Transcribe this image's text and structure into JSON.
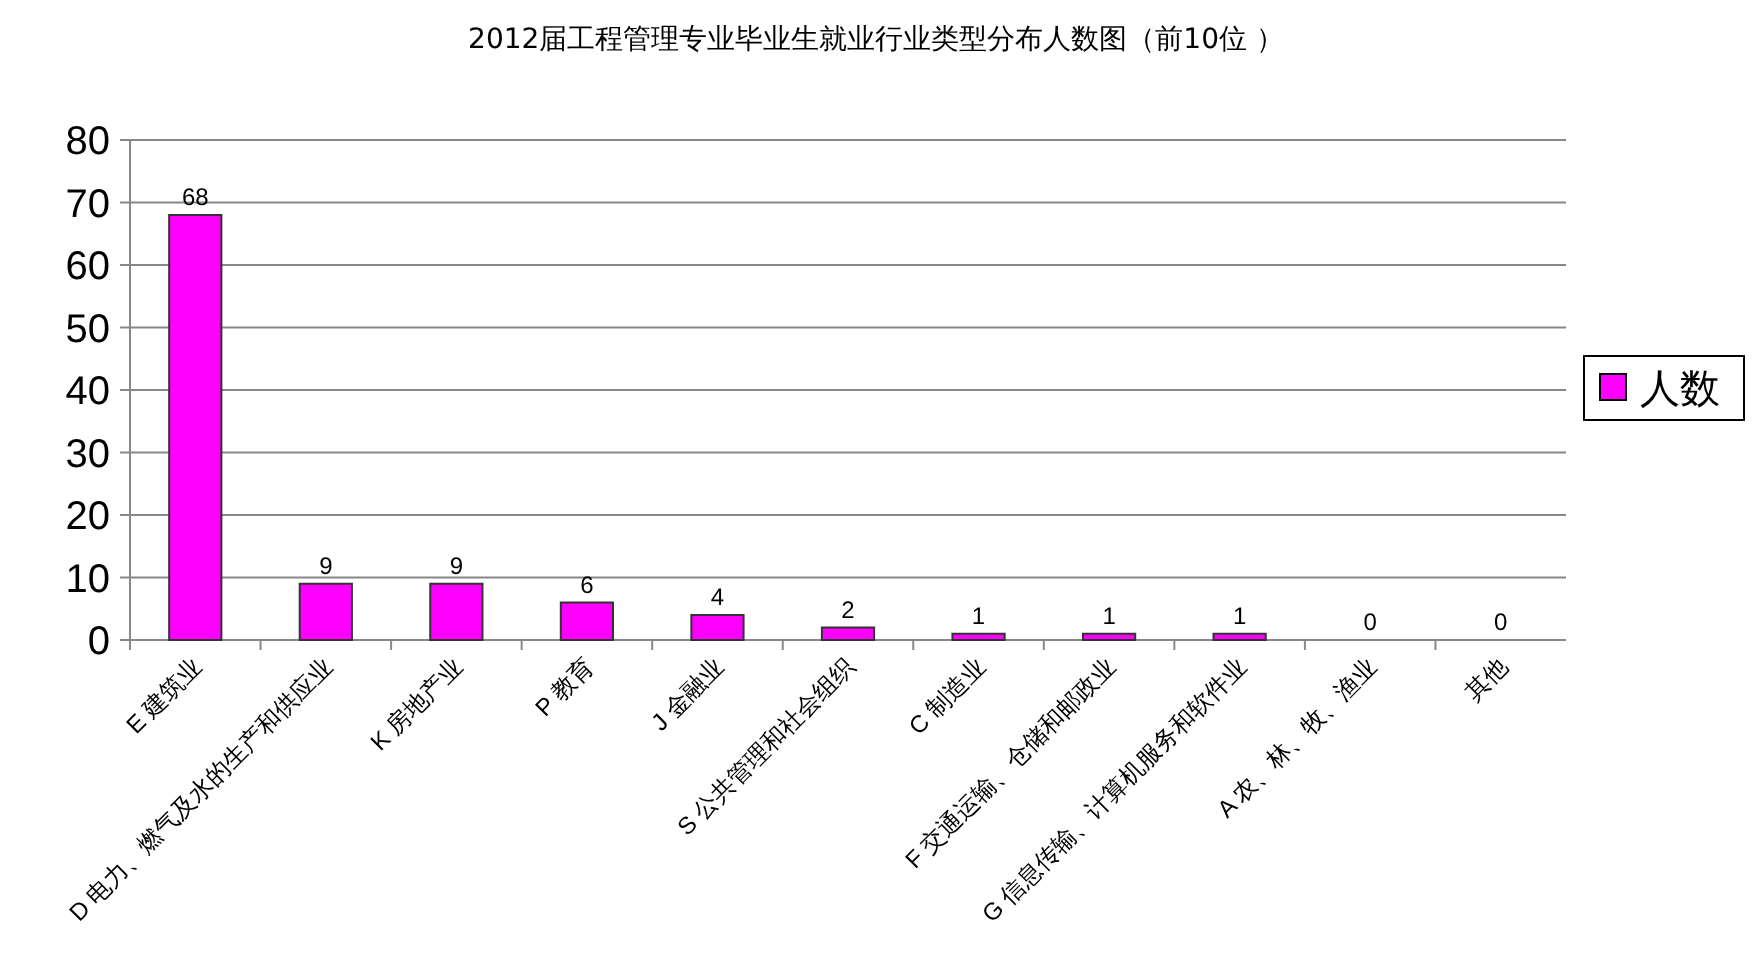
{
  "chart_data": {
    "type": "bar",
    "title": "2012届工程管理专业毕业生就业行业类型分布人数图（前10位 ）",
    "categories": [
      "E 建筑业",
      "D 电力、燃气及水的生产和供应业",
      "K 房地产业",
      "P 教育",
      "J 金融业",
      "S 公共管理和社会组织",
      "C 制造业",
      "F 交通运输、仓储和邮政业",
      "G 信息传输、计算机服务和软件业",
      "A 农、林、牧、渔业",
      "其他"
    ],
    "series": [
      {
        "name": "人数",
        "color": "#ff00ff",
        "values": [
          68,
          9,
          9,
          6,
          4,
          2,
          1,
          1,
          1,
          0,
          0
        ]
      }
    ],
    "ylim": [
      0,
      80
    ],
    "yticks": [
      0,
      10,
      20,
      30,
      40,
      50,
      60,
      70,
      80
    ],
    "grid": "y",
    "legend": "right",
    "data_labels": true
  }
}
